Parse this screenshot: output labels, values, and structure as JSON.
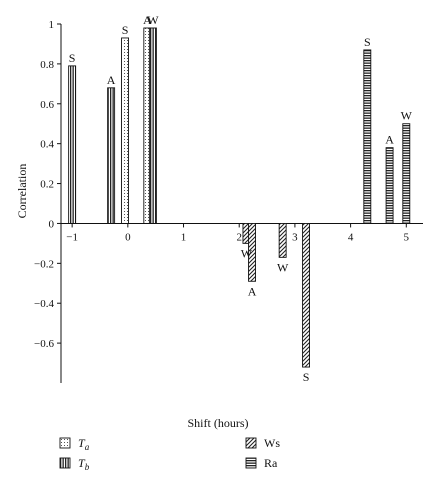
{
  "chart_data": {
    "type": "bar",
    "xlabel": "Shift (hours)",
    "ylabel": "Correlation",
    "xlim": [
      -1.2,
      5.3
    ],
    "ylim": [
      -0.8,
      1.0
    ],
    "xticks": [
      -1,
      0,
      1,
      2,
      3,
      4,
      5
    ],
    "yticks": [
      1,
      0.8,
      0.6,
      0.4,
      0.2,
      0,
      -0.2,
      -0.4,
      -0.6
    ],
    "ytick_labels": [
      "1",
      "0.8",
      "0.6",
      "0.4",
      "0.2",
      "0",
      "−0.2",
      "−0.4",
      "−0.6"
    ],
    "xtick_labels": [
      "−1",
      "0",
      "1",
      "2",
      "3",
      "4",
      "5"
    ],
    "series": [
      {
        "name": "Ta",
        "legend_main": "T",
        "legend_sub": "a",
        "pattern": "dotted",
        "bars": [
          {
            "x": -0.05,
            "value": 0.93,
            "label": "S"
          },
          {
            "x": 0.35,
            "value": 0.98,
            "label": "A"
          }
        ]
      },
      {
        "name": "Tb",
        "legend_main": "T",
        "legend_sub": "b",
        "pattern": "vertical",
        "bars": [
          {
            "x": -1.0,
            "value": 0.79,
            "label": "S"
          },
          {
            "x": -0.3,
            "value": 0.68,
            "label": "A"
          },
          {
            "x": 0.45,
            "value": 0.98,
            "label": "W"
          }
        ]
      },
      {
        "name": "Ws",
        "legend_main": "Ws",
        "legend_sub": "",
        "pattern": "diagonal",
        "bars": [
          {
            "x": 2.13,
            "value": -0.1,
            "label": "W"
          },
          {
            "x": 2.23,
            "value": -0.29,
            "label": "A"
          },
          {
            "x": 2.78,
            "value": -0.17,
            "label": "W"
          },
          {
            "x": 3.2,
            "value": -0.72,
            "label": "S"
          }
        ]
      },
      {
        "name": "Ra",
        "legend_main": "Ra",
        "legend_sub": "",
        "pattern": "horizontal",
        "bars": [
          {
            "x": 4.3,
            "value": 0.87,
            "label": "S"
          },
          {
            "x": 4.7,
            "value": 0.38,
            "label": "A"
          },
          {
            "x": 5.0,
            "value": 0.5,
            "label": "W"
          }
        ]
      }
    ]
  }
}
